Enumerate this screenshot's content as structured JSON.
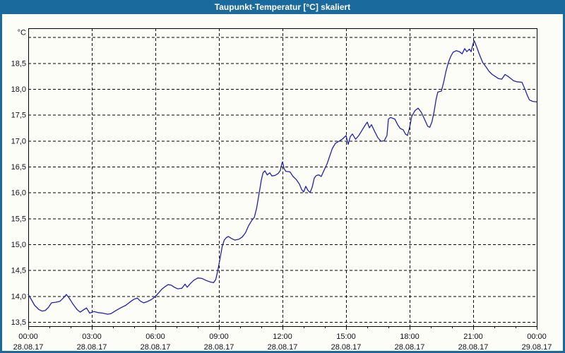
{
  "window": {
    "title": "Taupunkt-Temperatur [°C] skaliert"
  },
  "colors": {
    "frame_blue": "#1b6a9d",
    "title_text": "#ffffff",
    "background": "#fcfdf6",
    "line_blue": "#2121b2",
    "grid_black": "#000000",
    "label_text": "#101020"
  },
  "chart_data": {
    "type": "line",
    "title": "Taupunkt-Temperatur [°C] skaliert",
    "ylabel_unit": "°C",
    "ylim": [
      13.5,
      19.0
    ],
    "y_grid_step": 0.5,
    "xlim_hours": [
      0,
      24
    ],
    "x_major_step_hours": 3,
    "x_minor_step_hours": 1,
    "grid": "dashed",
    "legend_position": "none",
    "y_ticks": [
      {
        "value": 18.5,
        "label": "18,5"
      },
      {
        "value": 18.0,
        "label": "18,0"
      },
      {
        "value": 17.5,
        "label": "17,5"
      },
      {
        "value": 17.0,
        "label": "17,0"
      },
      {
        "value": 16.5,
        "label": "16,5"
      },
      {
        "value": 16.0,
        "label": "16,0"
      },
      {
        "value": 15.5,
        "label": "15,5"
      },
      {
        "value": 15.0,
        "label": "15,0"
      },
      {
        "value": 14.5,
        "label": "14,5"
      },
      {
        "value": 14.0,
        "label": "14,0"
      },
      {
        "value": 13.5,
        "label": "13,5"
      }
    ],
    "x_ticks": [
      {
        "hour": 0,
        "time": "00:00",
        "date": "28.08.17"
      },
      {
        "hour": 3,
        "time": "03:00",
        "date": "28.08.17"
      },
      {
        "hour": 6,
        "time": "06:00",
        "date": "28.08.17"
      },
      {
        "hour": 9,
        "time": "09:00",
        "date": "28.08.17"
      },
      {
        "hour": 12,
        "time": "12:00",
        "date": "28.08.17"
      },
      {
        "hour": 15,
        "time": "15:00",
        "date": "28.08.17"
      },
      {
        "hour": 18,
        "time": "18:00",
        "date": "28.08.17"
      },
      {
        "hour": 21,
        "time": "21:00",
        "date": "28.08.17"
      },
      {
        "hour": 24,
        "time": "00:00",
        "date": "29.08.17"
      }
    ],
    "series": [
      {
        "name": "Taupunkt-Temperatur",
        "points": [
          [
            0.0,
            14.03
          ],
          [
            0.15,
            13.93
          ],
          [
            0.3,
            13.82
          ],
          [
            0.5,
            13.74
          ],
          [
            0.65,
            13.71
          ],
          [
            0.8,
            13.72
          ],
          [
            0.95,
            13.78
          ],
          [
            1.1,
            13.87
          ],
          [
            1.3,
            13.88
          ],
          [
            1.5,
            13.9
          ],
          [
            1.65,
            13.96
          ],
          [
            1.8,
            14.03
          ],
          [
            1.95,
            13.95
          ],
          [
            2.1,
            13.85
          ],
          [
            2.3,
            13.74
          ],
          [
            2.45,
            13.69
          ],
          [
            2.6,
            13.73
          ],
          [
            2.75,
            13.77
          ],
          [
            2.9,
            13.67
          ],
          [
            3.1,
            13.7
          ],
          [
            3.3,
            13.68
          ],
          [
            3.5,
            13.67
          ],
          [
            3.75,
            13.65
          ],
          [
            3.9,
            13.66
          ],
          [
            4.1,
            13.71
          ],
          [
            4.35,
            13.77
          ],
          [
            4.6,
            13.82
          ],
          [
            4.85,
            13.9
          ],
          [
            5.0,
            13.94
          ],
          [
            5.15,
            13.96
          ],
          [
            5.3,
            13.9
          ],
          [
            5.45,
            13.87
          ],
          [
            5.6,
            13.89
          ],
          [
            5.8,
            13.93
          ],
          [
            6.0,
            13.99
          ],
          [
            6.15,
            14.06
          ],
          [
            6.3,
            14.13
          ],
          [
            6.45,
            14.18
          ],
          [
            6.6,
            14.22
          ],
          [
            6.75,
            14.21
          ],
          [
            6.9,
            14.17
          ],
          [
            7.05,
            14.14
          ],
          [
            7.25,
            14.15
          ],
          [
            7.4,
            14.23
          ],
          [
            7.5,
            14.17
          ],
          [
            7.65,
            14.24
          ],
          [
            7.8,
            14.3
          ],
          [
            8.0,
            14.35
          ],
          [
            8.2,
            14.34
          ],
          [
            8.4,
            14.3
          ],
          [
            8.6,
            14.27
          ],
          [
            8.75,
            14.26
          ],
          [
            8.85,
            14.32
          ],
          [
            8.95,
            14.5
          ],
          [
            9.05,
            14.72
          ],
          [
            9.15,
            14.95
          ],
          [
            9.25,
            15.08
          ],
          [
            9.35,
            15.13
          ],
          [
            9.45,
            15.15
          ],
          [
            9.6,
            15.11
          ],
          [
            9.75,
            15.08
          ],
          [
            9.95,
            15.1
          ],
          [
            10.1,
            15.14
          ],
          [
            10.25,
            15.22
          ],
          [
            10.4,
            15.36
          ],
          [
            10.55,
            15.46
          ],
          [
            10.67,
            15.52
          ],
          [
            10.78,
            15.7
          ],
          [
            10.9,
            15.99
          ],
          [
            11.0,
            16.24
          ],
          [
            11.08,
            16.38
          ],
          [
            11.17,
            16.42
          ],
          [
            11.28,
            16.34
          ],
          [
            11.4,
            16.38
          ],
          [
            11.5,
            16.32
          ],
          [
            11.65,
            16.33
          ],
          [
            11.8,
            16.37
          ],
          [
            11.9,
            16.43
          ],
          [
            11.97,
            16.56
          ],
          [
            12.0,
            16.59
          ],
          [
            12.08,
            16.46
          ],
          [
            12.15,
            16.41
          ],
          [
            12.35,
            16.4
          ],
          [
            12.5,
            16.31
          ],
          [
            12.65,
            16.25
          ],
          [
            12.8,
            16.16
          ],
          [
            12.9,
            16.06
          ],
          [
            13.0,
            16.01
          ],
          [
            13.1,
            16.12
          ],
          [
            13.2,
            16.04
          ],
          [
            13.3,
            16.0
          ],
          [
            13.4,
            16.1
          ],
          [
            13.5,
            16.28
          ],
          [
            13.6,
            16.33
          ],
          [
            13.72,
            16.34
          ],
          [
            13.83,
            16.31
          ],
          [
            13.95,
            16.42
          ],
          [
            14.1,
            16.55
          ],
          [
            14.2,
            16.67
          ],
          [
            14.35,
            16.85
          ],
          [
            14.5,
            16.95
          ],
          [
            14.7,
            17.0
          ],
          [
            14.85,
            17.04
          ],
          [
            15.0,
            17.1
          ],
          [
            15.1,
            16.93
          ],
          [
            15.2,
            17.08
          ],
          [
            15.3,
            17.13
          ],
          [
            15.45,
            17.03
          ],
          [
            15.6,
            17.1
          ],
          [
            15.75,
            17.2
          ],
          [
            15.9,
            17.3
          ],
          [
            16.0,
            17.36
          ],
          [
            16.1,
            17.25
          ],
          [
            16.2,
            17.31
          ],
          [
            16.35,
            17.18
          ],
          [
            16.5,
            17.06
          ],
          [
            16.65,
            16.99
          ],
          [
            16.8,
            17.0
          ],
          [
            16.93,
            17.1
          ],
          [
            17.0,
            17.42
          ],
          [
            17.1,
            17.45
          ],
          [
            17.3,
            17.42
          ],
          [
            17.45,
            17.3
          ],
          [
            17.55,
            17.24
          ],
          [
            17.7,
            17.21
          ],
          [
            17.8,
            17.13
          ],
          [
            17.9,
            17.1
          ],
          [
            18.0,
            17.26
          ],
          [
            18.1,
            17.47
          ],
          [
            18.25,
            17.58
          ],
          [
            18.4,
            17.63
          ],
          [
            18.55,
            17.55
          ],
          [
            18.7,
            17.42
          ],
          [
            18.85,
            17.28
          ],
          [
            18.95,
            17.26
          ],
          [
            19.05,
            17.36
          ],
          [
            19.15,
            17.55
          ],
          [
            19.25,
            17.8
          ],
          [
            19.33,
            17.94
          ],
          [
            19.5,
            17.96
          ],
          [
            19.6,
            18.12
          ],
          [
            19.72,
            18.35
          ],
          [
            19.82,
            18.5
          ],
          [
            19.93,
            18.62
          ],
          [
            20.05,
            18.71
          ],
          [
            20.2,
            18.74
          ],
          [
            20.35,
            18.72
          ],
          [
            20.48,
            18.68
          ],
          [
            20.6,
            18.78
          ],
          [
            20.7,
            18.72
          ],
          [
            20.82,
            18.77
          ],
          [
            20.9,
            18.72
          ],
          [
            21.0,
            18.88
          ],
          [
            21.05,
            18.93
          ],
          [
            21.15,
            18.83
          ],
          [
            21.3,
            18.66
          ],
          [
            21.45,
            18.51
          ],
          [
            21.6,
            18.43
          ],
          [
            21.75,
            18.34
          ],
          [
            21.9,
            18.28
          ],
          [
            22.05,
            18.24
          ],
          [
            22.2,
            18.2
          ],
          [
            22.35,
            18.19
          ],
          [
            22.5,
            18.28
          ],
          [
            22.62,
            18.25
          ],
          [
            22.75,
            18.21
          ],
          [
            22.9,
            18.16
          ],
          [
            23.05,
            18.14
          ],
          [
            23.3,
            18.13
          ],
          [
            23.45,
            17.99
          ],
          [
            23.55,
            17.88
          ],
          [
            23.65,
            17.79
          ],
          [
            23.8,
            17.76
          ],
          [
            24.0,
            17.75
          ]
        ]
      }
    ]
  }
}
